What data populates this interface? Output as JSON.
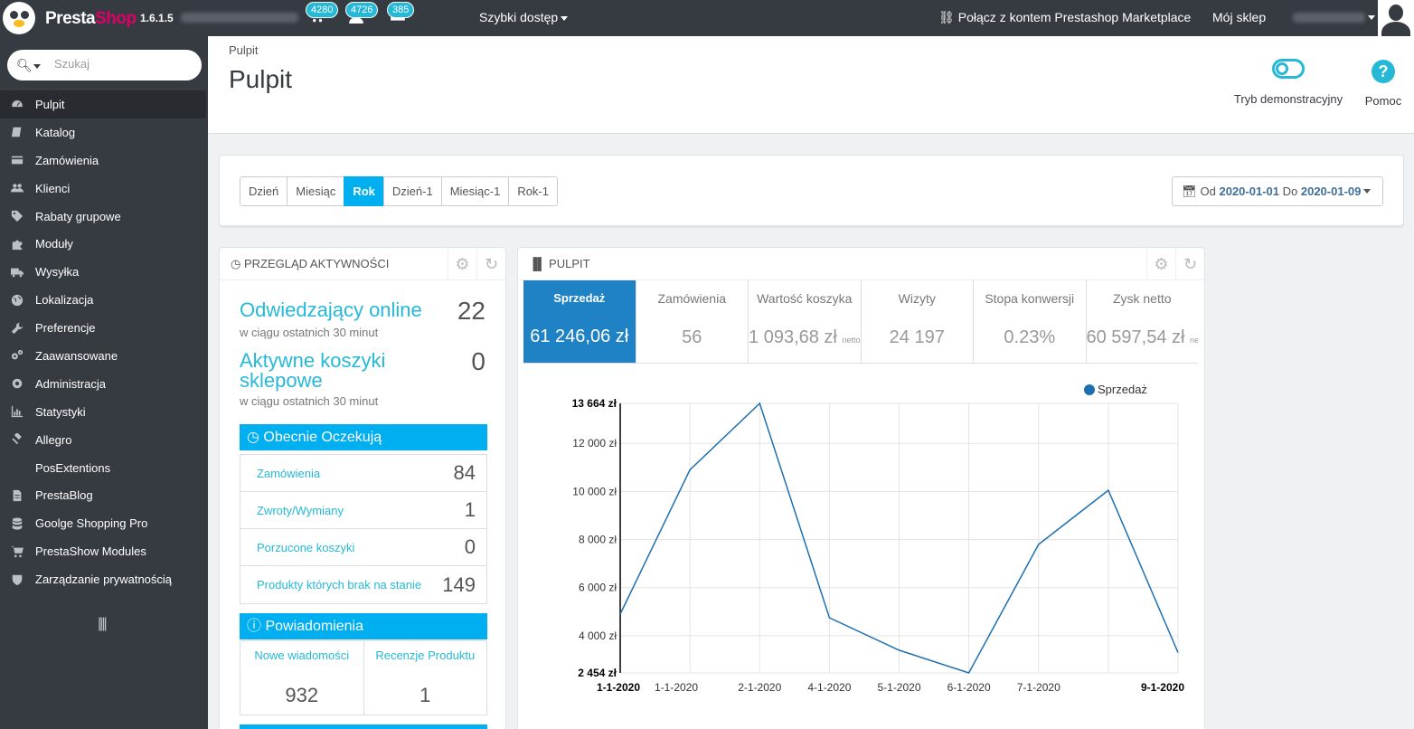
{
  "topbar": {
    "brand_presta": "Presta",
    "brand_shop": "Shop",
    "version": "1.6.1.5",
    "badges": {
      "orders": "4280",
      "customers": "4726",
      "messages": "385"
    },
    "quick_access": "Szybki dostęp",
    "marketplace": "Połącz z kontem Prestashop Marketplace",
    "my_shop": "Mój sklep"
  },
  "sidebar": {
    "search_placeholder": "Szukaj",
    "items": [
      {
        "label": "Pulpit",
        "icon": "dashboard-icon"
      },
      {
        "label": "Katalog",
        "icon": "book-icon"
      },
      {
        "label": "Zamówienia",
        "icon": "credit-card-icon"
      },
      {
        "label": "Klienci",
        "icon": "users-icon"
      },
      {
        "label": "Rabaty grupowe",
        "icon": "tags-icon"
      },
      {
        "label": "Moduły",
        "icon": "puzzle-icon"
      },
      {
        "label": "Wysyłka",
        "icon": "truck-icon"
      },
      {
        "label": "Lokalizacja",
        "icon": "globe-icon"
      },
      {
        "label": "Preferencje",
        "icon": "wrench-icon"
      },
      {
        "label": "Zaawansowane",
        "icon": "cogs-icon"
      },
      {
        "label": "Administracja",
        "icon": "cog-icon"
      },
      {
        "label": "Statystyki",
        "icon": "bar-chart-icon"
      },
      {
        "label": "Allegro",
        "icon": "gavel-icon"
      },
      {
        "label": "PosExtentions",
        "icon": ""
      },
      {
        "label": "PrestaBlog",
        "icon": "file-icon"
      },
      {
        "label": "Goolge Shopping Pro",
        "icon": "database-icon"
      },
      {
        "label": "PrestaShow Modules",
        "icon": "cart-icon"
      },
      {
        "label": "Zarządzanie prywatnością",
        "icon": "shield-icon"
      }
    ]
  },
  "header": {
    "breadcrumb": "Pulpit",
    "title": "Pulpit",
    "demo_mode": "Tryb demonstracyjny",
    "help": "Pomoc"
  },
  "period": {
    "buttons": [
      "Dzień",
      "Miesiąc",
      "Rok",
      "Dzień-1",
      "Miesiąc-1",
      "Rok-1"
    ],
    "active": "Rok",
    "from_label": "Od",
    "from": "2020-01-01",
    "to_label": "Do",
    "to": "2020-01-09"
  },
  "activity": {
    "title": "Przegląd aktywności",
    "online_title": "Odwiedzający online",
    "online_sub": "w ciągu ostatnich 30 minut",
    "online_value": "22",
    "carts_title_1": "Aktywne koszyki",
    "carts_title_2": "sklepowe",
    "carts_sub": "w ciągu ostatnich 30 minut",
    "carts_value": "0",
    "pending_title": "Obecnie Oczekują",
    "pending": [
      {
        "label": "Zamówienia",
        "value": "84"
      },
      {
        "label": "Zwroty/Wymiany",
        "value": "1"
      },
      {
        "label": "Porzucone koszyki",
        "value": "0"
      },
      {
        "label": "Produkty których brak na stanie",
        "value": "149"
      }
    ],
    "notifications_title": "Powiadomienia",
    "notifications": [
      {
        "label": "Nowe wiadomości",
        "value": "932"
      },
      {
        "label": "Recenzje Produktu",
        "value": "1"
      }
    ]
  },
  "dashboard": {
    "title": "Pulpit",
    "tabs": [
      {
        "label": "Sprzedaż",
        "value": "61 246,06 zł",
        "suffix": "",
        "active": true
      },
      {
        "label": "Zamówienia",
        "value": "56",
        "suffix": "",
        "active": false
      },
      {
        "label": "Wartość koszyka",
        "value": "1 093,68 zł",
        "suffix": "netto",
        "active": false
      },
      {
        "label": "Wizyty",
        "value": "24 197",
        "suffix": "",
        "active": false
      },
      {
        "label": "Stopa konwersji",
        "value": "0.23%",
        "suffix": "",
        "active": false
      },
      {
        "label": "Zysk netto",
        "value": "60 597,54 zł",
        "suffix": "netto",
        "active": false
      }
    ]
  },
  "chart_data": {
    "type": "line",
    "title": "",
    "legend": "Sprzedaż",
    "legend_position": "top-right",
    "color": "#1e6fb0",
    "y_ticks": [
      "13 664 zł",
      "12 000 zł",
      "10 000 zł",
      "8 000 zł",
      "6 000 zł",
      "4 000 zł",
      "2 454 zł"
    ],
    "y_tick_values": [
      13664,
      12000,
      10000,
      8000,
      6000,
      4000,
      2454
    ],
    "ylim": [
      2454,
      13664
    ],
    "x_ticks": [
      "1-1-2020",
      "1-1-2020",
      "2-1-2020",
      "4-1-2020",
      "5-1-2020",
      "6-1-2020",
      "7-1-2020",
      "9-1-2020"
    ],
    "grid": true,
    "series": [
      {
        "name": "Sprzedaż",
        "x": [
          0,
          0.87,
          1.74,
          2.61,
          3.48,
          4.35,
          5.22,
          6.09,
          6.96
        ],
        "values": [
          4900,
          10900,
          13664,
          4750,
          3400,
          2454,
          7800,
          10050,
          3300
        ]
      }
    ]
  }
}
